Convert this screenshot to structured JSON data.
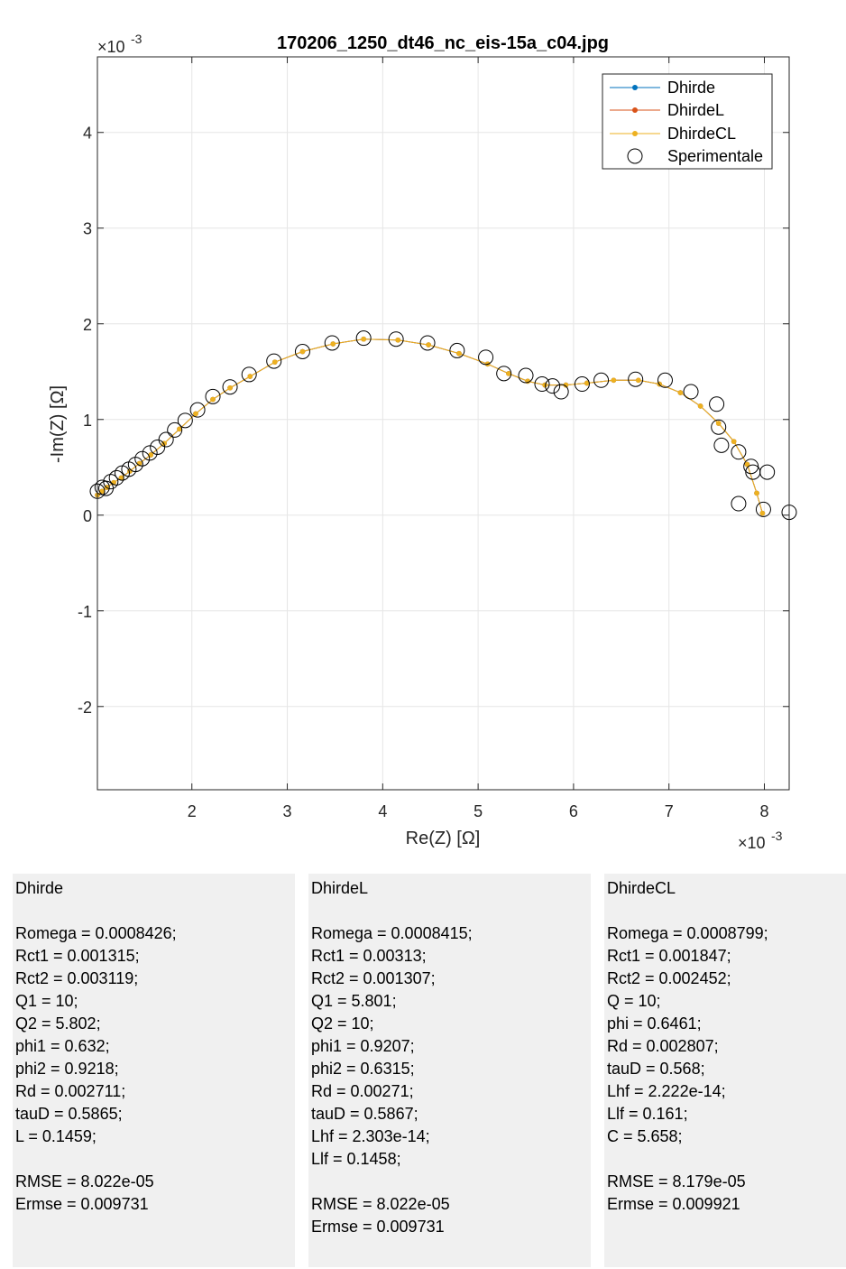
{
  "chart_data": {
    "type": "line",
    "title": "170206_1250_dt46_nc_eis-15a_c04.jpg",
    "xlabel": "Re(Z) [Ω]",
    "ylabel": "-Im(Z) [Ω]",
    "x_exponent_label": "×10",
    "x_exponent": "-3",
    "y_exponent_label": "×10",
    "y_exponent": "-3",
    "xlim": [
      0.00101,
      0.00826
    ],
    "ylim": [
      -0.00287,
      0.00479
    ],
    "xticks": [
      0.002,
      0.003,
      0.004,
      0.005,
      0.006,
      0.007,
      0.008
    ],
    "xtick_labels": [
      "2",
      "3",
      "4",
      "5",
      "6",
      "7",
      "8"
    ],
    "yticks": [
      -0.002,
      -0.001,
      0,
      0.001,
      0.002,
      0.003,
      0.004
    ],
    "ytick_labels": [
      "-2",
      "-1",
      "0",
      "1",
      "2",
      "3",
      "4"
    ],
    "grid": true,
    "legend_position": "top-right",
    "series": [
      {
        "name": "Dhirde",
        "color": "#0072bd",
        "style": "line-dot",
        "x": [
          0.00101,
          0.00106,
          0.00111,
          0.00118,
          0.00126,
          0.00135,
          0.00145,
          0.00157,
          0.00171,
          0.00187,
          0.00204,
          0.00222,
          0.0024,
          0.00261,
          0.00287,
          0.00316,
          0.00348,
          0.0038,
          0.00416,
          0.00448,
          0.0048,
          0.0051,
          0.00532,
          0.00552,
          0.0057,
          0.00592,
          0.00614,
          0.00642,
          0.00668,
          0.0069,
          0.00712,
          0.00733,
          0.00752,
          0.00768,
          0.00782,
          0.00792,
          0.00798
        ],
        "y": [
          0.00021,
          0.00025,
          0.00029,
          0.00034,
          0.00039,
          0.00046,
          0.00054,
          0.00063,
          0.00075,
          0.0009,
          0.00106,
          0.00121,
          0.00133,
          0.00145,
          0.0016,
          0.00171,
          0.00179,
          0.00184,
          0.00183,
          0.00178,
          0.00169,
          0.00158,
          0.00148,
          0.0014,
          0.00136,
          0.00136,
          0.00138,
          0.00141,
          0.00141,
          0.00137,
          0.00128,
          0.00114,
          0.00096,
          0.00077,
          0.00053,
          0.00023,
          2e-05
        ]
      },
      {
        "name": "DhirdeL",
        "color": "#d95319",
        "style": "line-dot",
        "x": [
          0.00101,
          0.00106,
          0.00111,
          0.00118,
          0.00126,
          0.00135,
          0.00145,
          0.00157,
          0.00171,
          0.00187,
          0.00204,
          0.00222,
          0.0024,
          0.00261,
          0.00287,
          0.00316,
          0.00348,
          0.0038,
          0.00416,
          0.00448,
          0.0048,
          0.0051,
          0.00532,
          0.00552,
          0.0057,
          0.00592,
          0.00614,
          0.00642,
          0.00668,
          0.0069,
          0.00712,
          0.00733,
          0.00752,
          0.00768,
          0.00782,
          0.00792,
          0.00798
        ],
        "y": [
          0.00021,
          0.00025,
          0.00029,
          0.00034,
          0.00039,
          0.00046,
          0.00054,
          0.00063,
          0.00075,
          0.0009,
          0.00106,
          0.00121,
          0.00133,
          0.00145,
          0.0016,
          0.00171,
          0.00179,
          0.00184,
          0.00183,
          0.00178,
          0.00169,
          0.00158,
          0.00148,
          0.0014,
          0.00136,
          0.00136,
          0.00138,
          0.00141,
          0.00141,
          0.00137,
          0.00128,
          0.00114,
          0.00096,
          0.00077,
          0.00053,
          0.00023,
          2e-05
        ]
      },
      {
        "name": "DhirdeCL",
        "color": "#edb120",
        "style": "line-dot",
        "x": [
          0.00101,
          0.00106,
          0.00111,
          0.00118,
          0.00126,
          0.00135,
          0.00145,
          0.00157,
          0.00171,
          0.00187,
          0.00204,
          0.00222,
          0.0024,
          0.00261,
          0.00287,
          0.00316,
          0.00348,
          0.0038,
          0.00416,
          0.00448,
          0.0048,
          0.0051,
          0.00532,
          0.00552,
          0.0057,
          0.00592,
          0.00614,
          0.00642,
          0.00668,
          0.0069,
          0.00712,
          0.00733,
          0.00752,
          0.00768,
          0.00782,
          0.00792,
          0.00798
        ],
        "y": [
          0.00021,
          0.00025,
          0.00029,
          0.00034,
          0.00039,
          0.00046,
          0.00054,
          0.00063,
          0.00075,
          0.0009,
          0.00106,
          0.00121,
          0.00133,
          0.00145,
          0.0016,
          0.00171,
          0.00179,
          0.00184,
          0.00183,
          0.00178,
          0.00169,
          0.00158,
          0.00148,
          0.0014,
          0.00136,
          0.00136,
          0.00138,
          0.00141,
          0.00141,
          0.00137,
          0.00128,
          0.00114,
          0.00096,
          0.00077,
          0.00053,
          0.00023,
          2e-05
        ]
      },
      {
        "name": "Sperimentale",
        "color": "#000000",
        "style": "open-circle",
        "x": [
          0.00101,
          0.00106,
          0.0011,
          0.00115,
          0.00121,
          0.00127,
          0.00134,
          0.00141,
          0.00148,
          0.00156,
          0.00164,
          0.00173,
          0.00182,
          0.00193,
          0.00206,
          0.00222,
          0.0024,
          0.0026,
          0.00286,
          0.00316,
          0.00347,
          0.0038,
          0.00414,
          0.00447,
          0.00478,
          0.00508,
          0.00527,
          0.0055,
          0.00567,
          0.00578,
          0.00587,
          0.00609,
          0.00629,
          0.00665,
          0.00696,
          0.00723,
          0.0075,
          0.00752,
          0.00755,
          0.00773,
          0.00786,
          0.00788,
          0.00803,
          0.00773,
          0.00799,
          0.00826
        ],
        "y": [
          0.00025,
          0.00029,
          0.00028,
          0.00035,
          0.00039,
          0.00044,
          0.00048,
          0.00053,
          0.00059,
          0.00065,
          0.00071,
          0.00079,
          0.00089,
          0.00099,
          0.0011,
          0.00124,
          0.00134,
          0.00147,
          0.00161,
          0.00171,
          0.0018,
          0.00185,
          0.00184,
          0.0018,
          0.00172,
          0.00165,
          0.00148,
          0.00146,
          0.00137,
          0.00135,
          0.00129,
          0.00137,
          0.00141,
          0.00142,
          0.00141,
          0.00129,
          0.00116,
          0.00092,
          0.00073,
          0.00066,
          0.00051,
          0.00045,
          0.00045,
          0.00012,
          6e-05,
          3e-05
        ]
      }
    ]
  },
  "panels": [
    {
      "title": "Dhirde",
      "params": [
        "Romega = 0.0008426;",
        "Rct1 = 0.001315;",
        "Rct2 = 0.003119;",
        "Q1 = 10;",
        "Q2 = 5.802;",
        "phi1 = 0.632;",
        "phi2 = 0.9218;",
        "Rd = 0.002711;",
        "tauD = 0.5865;",
        "L = 0.1459;"
      ],
      "rmse": "RMSE = 8.022e-05",
      "ermse": "Ermse = 0.009731"
    },
    {
      "title": "DhirdeL",
      "params": [
        "Romega = 0.0008415;",
        "Rct1 = 0.00313;",
        "Rct2 = 0.001307;",
        "Q1 = 5.801;",
        "Q2 = 10;",
        "phi1 = 0.9207;",
        "phi2 = 0.6315;",
        "Rd = 0.00271;",
        "tauD = 0.5867;",
        "Lhf = 2.303e-14;",
        "Llf = 0.1458;"
      ],
      "rmse": "RMSE = 8.022e-05",
      "ermse": "Ermse = 0.009731"
    },
    {
      "title": "DhirdeCL",
      "params": [
        "Romega = 0.0008799;",
        "Rct1 = 0.001847;",
        "Rct2 = 0.002452;",
        "Q = 10;",
        "phi = 0.6461;",
        "Rd = 0.002807;",
        "tauD = 0.568;",
        "Lhf = 2.222e-14;",
        "Llf = 0.161;",
        "C = 5.658;"
      ],
      "rmse": "RMSE = 8.179e-05",
      "ermse": "Ermse = 0.009921"
    }
  ]
}
